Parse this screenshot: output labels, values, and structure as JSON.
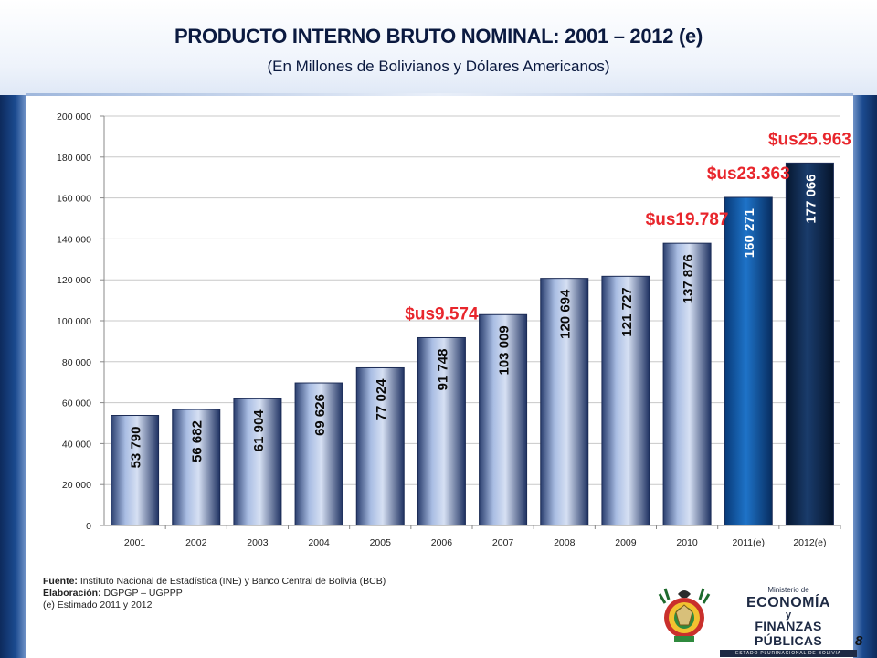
{
  "slide": {
    "title": "PRODUCTO INTERNO BRUTO NOMINAL: 2001 – 2012 (e)",
    "subtitle": "(En Millones de Bolivianos y Dólares Americanos)",
    "page_number": "8"
  },
  "footer": {
    "source_label": "Fuente:",
    "source_text": " Instituto Nacional de Estadística (INE) y Banco Central de Bolivia (BCB)",
    "elaboration_label": "Elaboración:",
    "elaboration_text": " DGPGP – UGPPP",
    "note": "(e) Estimado 2011 y 2012"
  },
  "logo": {
    "ministerio": "Ministerio de",
    "economia": "ECONOMÍA",
    "y": "y",
    "finanzas": "FINANZAS PÚBLICAS",
    "estado": "ESTADO PLURINACIONAL DE BOLIVIA"
  },
  "colors": {
    "bar_actual_light": "#c9d6ee",
    "bar_actual_dark": "#223766",
    "bar_2011": "#0d5aaa",
    "bar_2012": "#0e2a52",
    "annotation": "#e8262c",
    "title": "#0b1a40"
  },
  "chart_data": {
    "type": "bar",
    "categories": [
      "2001",
      "2002",
      "2003",
      "2004",
      "2005",
      "2006",
      "2007",
      "2008",
      "2009",
      "2010",
      "2011(e)",
      "2012(e)"
    ],
    "values": [
      53790,
      56682,
      61904,
      69626,
      77024,
      91748,
      103009,
      120694,
      121727,
      137876,
      160271,
      177066
    ],
    "value_labels": [
      "53 790",
      "56 682",
      "61 904",
      "69 626",
      "77 024",
      "91 748",
      "103 009",
      "120 694",
      "121 727",
      "137 876",
      "160 271",
      "177 066"
    ],
    "y_ticks": [
      0,
      20000,
      40000,
      60000,
      80000,
      100000,
      120000,
      140000,
      160000,
      180000,
      200000
    ],
    "y_tick_labels": [
      "0",
      "20 000",
      "40 000",
      "60 000",
      "80 000",
      "100 000",
      "120 000",
      "140 000",
      "160 000",
      "180 000",
      "200 000"
    ],
    "ylim": [
      0,
      200000
    ],
    "grid": true,
    "annotations": [
      {
        "category": "2006",
        "text": "$us9.574"
      },
      {
        "category": "2010",
        "text": "$us19.787"
      },
      {
        "category": "2011(e)",
        "text": "$us23.363"
      },
      {
        "category": "2012(e)",
        "text": "$us25.963"
      }
    ]
  }
}
